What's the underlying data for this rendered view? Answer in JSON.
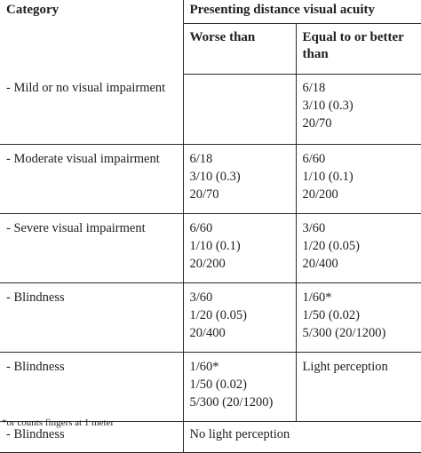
{
  "header": {
    "category": "Category",
    "acuity": "Presenting distance visual acuity",
    "worse_than": "Worse than",
    "equal_or_better": "Equal to or better than"
  },
  "rows": [
    {
      "category": "- Mild or no visual impairment",
      "worse": [],
      "equal": [
        "6/18",
        "3/10 (0.3)",
        "20/70"
      ]
    },
    {
      "category": "- Moderate visual impairment",
      "worse": [
        "6/18",
        "3/10 (0.3)",
        "20/70"
      ],
      "equal": [
        "6/60",
        "1/10 (0.1)",
        "20/200"
      ]
    },
    {
      "category": "- Severe visual impairment",
      "worse": [
        "6/60",
        "1/10 (0.1)",
        "20/200"
      ],
      "equal": [
        "3/60",
        "1/20 (0.05)",
        "20/400"
      ]
    },
    {
      "category": "- Blindness",
      "worse": [
        "3/60",
        "1/20 (0.05)",
        "20/400"
      ],
      "equal": [
        "1/60*",
        "1/50 (0.02)",
        "5/300 (20/1200)"
      ]
    },
    {
      "category": "- Blindness",
      "worse": [
        "1/60*",
        "1/50 (0.02)",
        "5/300 (20/1200)"
      ],
      "equal": [
        "Light perception"
      ]
    },
    {
      "category": "- Blindness",
      "span": "No light perception"
    }
  ],
  "footnote": "*or counts fingers at 1 meter"
}
